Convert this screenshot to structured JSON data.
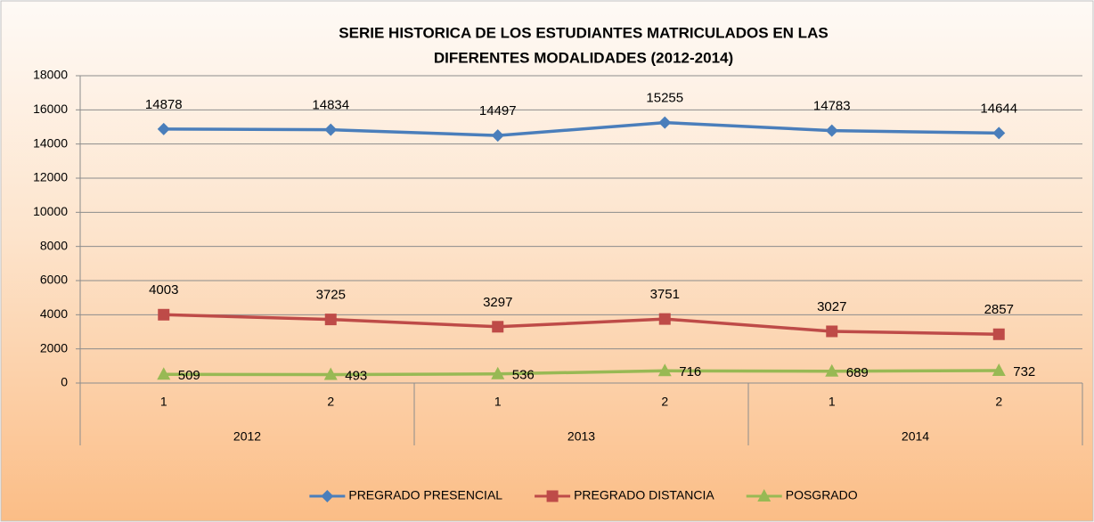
{
  "chart_data": {
    "type": "line",
    "title": [
      "SERIE HISTORICA DE LOS ESTUDIANTES MATRICULADOS EN LAS",
      "DIFERENTES MODALIDADES (2012-2014)"
    ],
    "categories": [
      "1",
      "2",
      "1",
      "2",
      "1",
      "2"
    ],
    "category_groups": [
      "2012",
      "2013",
      "2014"
    ],
    "series": [
      {
        "name": "PREGRADO PRESENCIAL",
        "color": "#4a7ebb",
        "marker": "diamond",
        "values": [
          14878,
          14834,
          14497,
          15255,
          14783,
          14644
        ]
      },
      {
        "name": "PREGRADO DISTANCIA",
        "color": "#be4b48",
        "marker": "square",
        "values": [
          4003,
          3725,
          3297,
          3751,
          3027,
          2857
        ]
      },
      {
        "name": "POSGRADO",
        "color": "#98b954",
        "marker": "triangle",
        "values": [
          509,
          493,
          536,
          716,
          689,
          732
        ]
      }
    ],
    "ylim": [
      0,
      18000
    ],
    "yticks": [
      0,
      2000,
      4000,
      6000,
      8000,
      10000,
      12000,
      14000,
      16000,
      18000
    ],
    "grid": true,
    "legend": "bottom"
  }
}
